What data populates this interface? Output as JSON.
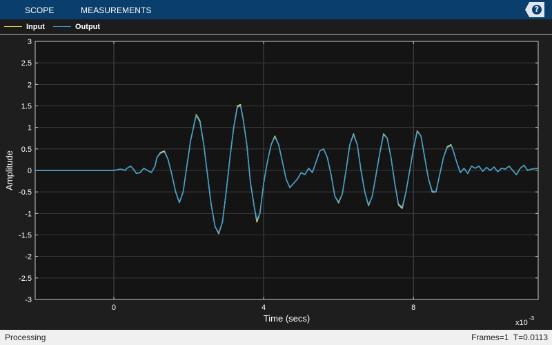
{
  "toolbar": {
    "tabs": [
      {
        "label": "SCOPE"
      },
      {
        "label": "MEASUREMENTS"
      }
    ],
    "help_label": "?"
  },
  "legend": {
    "items": [
      {
        "label": "Input",
        "color": "#f5d254"
      },
      {
        "label": "Output",
        "color": "#3aa1d8"
      }
    ]
  },
  "chart_data": {
    "type": "line",
    "title": "",
    "xlabel": "Time (secs)",
    "ylabel": "Amplitude",
    "x_exponent_label": "x10",
    "x_exponent_power": "-3",
    "xlim": [
      -2.1,
      11.33
    ],
    "ylim": [
      -3,
      3
    ],
    "x_ticks": [
      0,
      4,
      8
    ],
    "x_tick_labels": [
      "0",
      "4",
      "8"
    ],
    "y_ticks": [
      -3,
      -2.5,
      -2,
      -1.5,
      -1,
      -0.5,
      0,
      0.5,
      1,
      1.5,
      2,
      2.5,
      3
    ],
    "y_tick_labels": [
      "-3",
      "-2.5",
      "-2",
      "-1.5",
      "-1",
      "-0.5",
      "0",
      "0.5",
      "1",
      "1.5",
      "2",
      "2.5",
      "3"
    ],
    "grid": true,
    "legend_position": "top-left",
    "background": "#141414",
    "series": [
      {
        "name": "Input",
        "color": "#f5d254",
        "points": [
          [
            -2.1,
            0
          ],
          [
            0.0,
            0
          ],
          [
            0.1,
            0.02
          ],
          [
            0.2,
            0.03
          ],
          [
            0.3,
            0.0
          ],
          [
            0.35,
            0.05
          ],
          [
            0.45,
            0.1
          ],
          [
            0.55,
            0.0
          ],
          [
            0.6,
            -0.07
          ],
          [
            0.7,
            -0.05
          ],
          [
            0.8,
            0.05
          ],
          [
            0.9,
            0.0
          ],
          [
            1.0,
            -0.05
          ],
          [
            1.1,
            0.1
          ],
          [
            1.15,
            0.3
          ],
          [
            1.25,
            0.42
          ],
          [
            1.35,
            0.45
          ],
          [
            1.45,
            0.25
          ],
          [
            1.55,
            -0.1
          ],
          [
            1.65,
            -0.5
          ],
          [
            1.75,
            -0.75
          ],
          [
            1.85,
            -0.5
          ],
          [
            1.95,
            0.1
          ],
          [
            2.05,
            0.7
          ],
          [
            2.2,
            1.3
          ],
          [
            2.3,
            1.15
          ],
          [
            2.4,
            0.6
          ],
          [
            2.5,
            -0.1
          ],
          [
            2.6,
            -0.8
          ],
          [
            2.7,
            -1.3
          ],
          [
            2.8,
            -1.47
          ],
          [
            2.9,
            -1.2
          ],
          [
            3.0,
            -0.5
          ],
          [
            3.1,
            0.3
          ],
          [
            3.2,
            1.0
          ],
          [
            3.3,
            1.5
          ],
          [
            3.38,
            1.53
          ],
          [
            3.45,
            1.2
          ],
          [
            3.55,
            0.6
          ],
          [
            3.65,
            -0.3
          ],
          [
            3.75,
            -0.85
          ],
          [
            3.82,
            -1.2
          ],
          [
            3.9,
            -1.0
          ],
          [
            4.0,
            -0.3
          ],
          [
            4.1,
            0.2
          ],
          [
            4.2,
            0.6
          ],
          [
            4.3,
            0.8
          ],
          [
            4.4,
            0.6
          ],
          [
            4.5,
            0.2
          ],
          [
            4.6,
            -0.2
          ],
          [
            4.7,
            -0.4
          ],
          [
            4.8,
            -0.3
          ],
          [
            4.9,
            -0.2
          ],
          [
            5.0,
            -0.05
          ],
          [
            5.1,
            -0.1
          ],
          [
            5.2,
            0.05
          ],
          [
            5.3,
            -0.05
          ],
          [
            5.4,
            0.2
          ],
          [
            5.5,
            0.45
          ],
          [
            5.6,
            0.5
          ],
          [
            5.7,
            0.3
          ],
          [
            5.8,
            -0.1
          ],
          [
            5.9,
            -0.6
          ],
          [
            6.0,
            -0.75
          ],
          [
            6.1,
            -0.55
          ],
          [
            6.2,
            0.0
          ],
          [
            6.3,
            0.6
          ],
          [
            6.4,
            0.85
          ],
          [
            6.5,
            0.6
          ],
          [
            6.6,
            0.0
          ],
          [
            6.7,
            -0.5
          ],
          [
            6.8,
            -0.82
          ],
          [
            6.9,
            -0.6
          ],
          [
            7.0,
            -0.1
          ],
          [
            7.1,
            0.4
          ],
          [
            7.2,
            0.85
          ],
          [
            7.3,
            0.75
          ],
          [
            7.4,
            0.3
          ],
          [
            7.5,
            -0.3
          ],
          [
            7.6,
            -0.8
          ],
          [
            7.7,
            -0.88
          ],
          [
            7.8,
            -0.5
          ],
          [
            7.9,
            0.0
          ],
          [
            8.0,
            0.5
          ],
          [
            8.1,
            0.92
          ],
          [
            8.2,
            0.8
          ],
          [
            8.3,
            0.3
          ],
          [
            8.4,
            -0.2
          ],
          [
            8.5,
            -0.5
          ],
          [
            8.6,
            -0.5
          ],
          [
            8.7,
            -0.1
          ],
          [
            8.8,
            0.3
          ],
          [
            8.9,
            0.55
          ],
          [
            9.0,
            0.6
          ],
          [
            9.05,
            0.5
          ],
          [
            9.15,
            0.2
          ],
          [
            9.25,
            -0.05
          ],
          [
            9.35,
            0.05
          ],
          [
            9.45,
            -0.07
          ],
          [
            9.55,
            0.1
          ],
          [
            9.65,
            0.05
          ],
          [
            9.75,
            0.1
          ],
          [
            9.85,
            -0.02
          ],
          [
            9.95,
            0.07
          ],
          [
            10.05,
            0.0
          ],
          [
            10.15,
            0.08
          ],
          [
            10.25,
            -0.03
          ],
          [
            10.35,
            0.05
          ],
          [
            10.45,
            0.03
          ],
          [
            10.55,
            0.1
          ],
          [
            10.65,
            0.0
          ],
          [
            10.75,
            -0.1
          ],
          [
            10.85,
            0.05
          ],
          [
            10.95,
            0.12
          ],
          [
            11.05,
            0.0
          ],
          [
            11.15,
            0.03
          ],
          [
            11.33,
            0.05
          ]
        ]
      },
      {
        "name": "Output",
        "color": "#3aa1d8",
        "points": [
          [
            -2.1,
            0
          ],
          [
            0.0,
            0
          ],
          [
            0.1,
            0.02
          ],
          [
            0.2,
            0.03
          ],
          [
            0.3,
            0.0
          ],
          [
            0.35,
            0.05
          ],
          [
            0.45,
            0.1
          ],
          [
            0.55,
            0.0
          ],
          [
            0.6,
            -0.07
          ],
          [
            0.7,
            -0.05
          ],
          [
            0.8,
            0.05
          ],
          [
            0.9,
            0.0
          ],
          [
            1.0,
            -0.05
          ],
          [
            1.1,
            0.1
          ],
          [
            1.15,
            0.3
          ],
          [
            1.25,
            0.4
          ],
          [
            1.35,
            0.43
          ],
          [
            1.45,
            0.25
          ],
          [
            1.55,
            -0.1
          ],
          [
            1.65,
            -0.5
          ],
          [
            1.75,
            -0.75
          ],
          [
            1.85,
            -0.5
          ],
          [
            1.95,
            0.1
          ],
          [
            2.05,
            0.7
          ],
          [
            2.2,
            1.28
          ],
          [
            2.3,
            1.12
          ],
          [
            2.4,
            0.6
          ],
          [
            2.5,
            -0.1
          ],
          [
            2.6,
            -0.8
          ],
          [
            2.7,
            -1.3
          ],
          [
            2.8,
            -1.45
          ],
          [
            2.9,
            -1.2
          ],
          [
            3.0,
            -0.5
          ],
          [
            3.1,
            0.3
          ],
          [
            3.2,
            1.0
          ],
          [
            3.3,
            1.47
          ],
          [
            3.38,
            1.5
          ],
          [
            3.45,
            1.2
          ],
          [
            3.55,
            0.6
          ],
          [
            3.65,
            -0.3
          ],
          [
            3.75,
            -0.85
          ],
          [
            3.82,
            -1.15
          ],
          [
            3.9,
            -1.0
          ],
          [
            4.0,
            -0.3
          ],
          [
            4.1,
            0.2
          ],
          [
            4.2,
            0.6
          ],
          [
            4.3,
            0.78
          ],
          [
            4.4,
            0.6
          ],
          [
            4.5,
            0.2
          ],
          [
            4.6,
            -0.2
          ],
          [
            4.7,
            -0.4
          ],
          [
            4.8,
            -0.3
          ],
          [
            4.9,
            -0.2
          ],
          [
            5.0,
            -0.05
          ],
          [
            5.1,
            -0.1
          ],
          [
            5.2,
            0.05
          ],
          [
            5.3,
            -0.05
          ],
          [
            5.4,
            0.2
          ],
          [
            5.5,
            0.45
          ],
          [
            5.6,
            0.5
          ],
          [
            5.7,
            0.3
          ],
          [
            5.8,
            -0.1
          ],
          [
            5.9,
            -0.6
          ],
          [
            6.0,
            -0.73
          ],
          [
            6.1,
            -0.55
          ],
          [
            6.2,
            0.0
          ],
          [
            6.3,
            0.6
          ],
          [
            6.4,
            0.83
          ],
          [
            6.5,
            0.6
          ],
          [
            6.6,
            0.0
          ],
          [
            6.7,
            -0.5
          ],
          [
            6.8,
            -0.8
          ],
          [
            6.9,
            -0.6
          ],
          [
            7.0,
            -0.1
          ],
          [
            7.1,
            0.4
          ],
          [
            7.2,
            0.83
          ],
          [
            7.3,
            0.75
          ],
          [
            7.4,
            0.3
          ],
          [
            7.5,
            -0.3
          ],
          [
            7.6,
            -0.78
          ],
          [
            7.7,
            -0.85
          ],
          [
            7.8,
            -0.5
          ],
          [
            7.9,
            0.0
          ],
          [
            8.0,
            0.5
          ],
          [
            8.1,
            0.9
          ],
          [
            8.2,
            0.8
          ],
          [
            8.3,
            0.3
          ],
          [
            8.4,
            -0.2
          ],
          [
            8.5,
            -0.48
          ],
          [
            8.6,
            -0.5
          ],
          [
            8.7,
            -0.1
          ],
          [
            8.8,
            0.3
          ],
          [
            8.9,
            0.53
          ],
          [
            9.0,
            0.58
          ],
          [
            9.05,
            0.5
          ],
          [
            9.15,
            0.2
          ],
          [
            9.25,
            -0.05
          ],
          [
            9.35,
            0.05
          ],
          [
            9.45,
            -0.07
          ],
          [
            9.55,
            0.1
          ],
          [
            9.65,
            0.05
          ],
          [
            9.75,
            0.1
          ],
          [
            9.85,
            -0.02
          ],
          [
            9.95,
            0.07
          ],
          [
            10.05,
            0.0
          ],
          [
            10.15,
            0.08
          ],
          [
            10.25,
            -0.03
          ],
          [
            10.35,
            0.05
          ],
          [
            10.45,
            0.03
          ],
          [
            10.55,
            0.1
          ],
          [
            10.65,
            0.0
          ],
          [
            10.75,
            -0.1
          ],
          [
            10.85,
            0.05
          ],
          [
            10.95,
            0.12
          ],
          [
            11.05,
            0.0
          ],
          [
            11.15,
            0.03
          ],
          [
            11.33,
            0.05
          ]
        ]
      }
    ]
  },
  "status": {
    "left_text": "Processing",
    "frames_text": "Frames=1",
    "time_text": "T=0.0113"
  }
}
